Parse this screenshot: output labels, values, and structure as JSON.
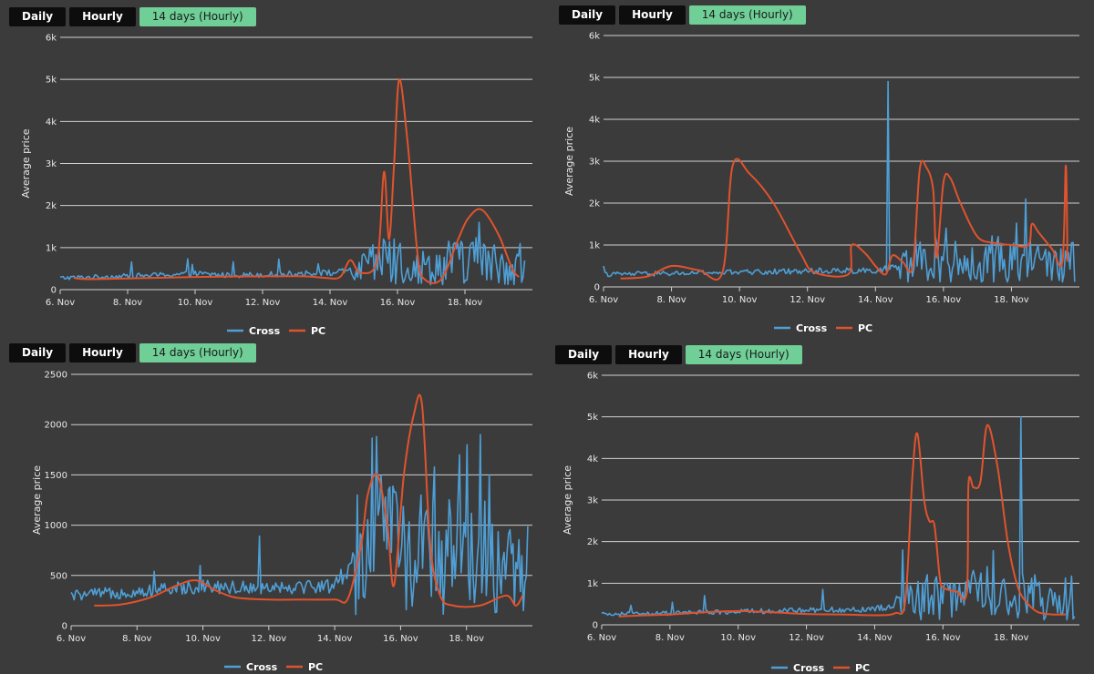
{
  "buttons": {
    "daily": "Daily",
    "hourly": "Hourly",
    "range": "14 days (Hourly)"
  },
  "colors": {
    "cross": "#4e9fd6",
    "pc": "#e0532d",
    "grid": "#d0d0d0",
    "active_button": "#6fcf97",
    "background": "#3b3b3b"
  },
  "chart_data": [
    {
      "type": "line",
      "ylabel": "Average price",
      "x_ticks": [
        "6. Nov",
        "8. Nov",
        "10. Nov",
        "12. Nov",
        "14. Nov",
        "16. Nov",
        "18. Nov"
      ],
      "y_ticks": [
        "0",
        "1k",
        "2k",
        "3k",
        "4k",
        "5k",
        "6k"
      ],
      "ylim": [
        0,
        6000
      ],
      "xlim": [
        6,
        20
      ],
      "legend": [
        "Cross",
        "PC"
      ],
      "series": [
        {
          "name": "Cross",
          "mode": "noisy",
          "points": [
            [
              6,
              280
            ],
            [
              7,
              300
            ],
            [
              8,
              320
            ],
            [
              9,
              350
            ],
            [
              10,
              380
            ],
            [
              11,
              340
            ],
            [
              12,
              360
            ],
            [
              13,
              380
            ],
            [
              14,
              400
            ],
            [
              14.7,
              450
            ],
            [
              15.2,
              550
            ],
            [
              15.6,
              700
            ],
            [
              16,
              650
            ],
            [
              16.5,
              500
            ],
            [
              17,
              550
            ],
            [
              17.5,
              600
            ],
            [
              18,
              700
            ],
            [
              18.5,
              650
            ],
            [
              19,
              600
            ],
            [
              19.5,
              550
            ],
            [
              19.8,
              400
            ]
          ],
          "spikes": [
            [
              9.9,
              600
            ],
            [
              15.2,
              1000
            ],
            [
              15.6,
              1200
            ],
            [
              15.9,
              1200
            ],
            [
              16.1,
              1100
            ],
            [
              17.5,
              1150
            ],
            [
              18.4,
              1600
            ],
            [
              19.6,
              800
            ]
          ]
        },
        {
          "name": "PC",
          "points": [
            [
              6.4,
              280
            ],
            [
              7,
              250
            ],
            [
              10,
              300
            ],
            [
              13,
              320
            ],
            [
              13.85,
              280
            ],
            [
              14.3,
              300
            ],
            [
              14.6,
              700
            ],
            [
              14.9,
              400
            ],
            [
              15.4,
              700
            ],
            [
              15.6,
              2800
            ],
            [
              15.75,
              1200
            ],
            [
              15.9,
              3000
            ],
            [
              16.05,
              5000
            ],
            [
              16.3,
              3500
            ],
            [
              16.6,
              800
            ],
            [
              16.8,
              250
            ],
            [
              17.3,
              250
            ],
            [
              17.8,
              1200
            ],
            [
              18.1,
              1700
            ],
            [
              18.5,
              1900
            ],
            [
              19,
              1300
            ],
            [
              19.4,
              500
            ],
            [
              19.6,
              300
            ]
          ]
        }
      ]
    },
    {
      "type": "line",
      "ylabel": "Average price",
      "x_ticks": [
        "6. Nov",
        "8. Nov",
        "10. Nov",
        "12. Nov",
        "14. Nov",
        "16. Nov",
        "18. Nov"
      ],
      "y_ticks": [
        "0",
        "1k",
        "2k",
        "3k",
        "4k",
        "5k",
        "6k"
      ],
      "ylim": [
        0,
        6000
      ],
      "xlim": [
        6,
        20
      ],
      "legend": [
        "Cross",
        "PC"
      ],
      "series": [
        {
          "name": "Cross",
          "mode": "noisy",
          "points": [
            [
              6,
              300
            ],
            [
              8,
              320
            ],
            [
              10,
              350
            ],
            [
              12,
              380
            ],
            [
              14,
              400
            ],
            [
              14.5,
              450
            ],
            [
              15,
              500
            ],
            [
              15.5,
              600
            ],
            [
              16,
              700
            ],
            [
              16.5,
              550
            ],
            [
              17,
              500
            ],
            [
              17.5,
              600
            ],
            [
              18,
              700
            ],
            [
              18.5,
              600
            ],
            [
              19,
              550
            ],
            [
              19.5,
              500
            ],
            [
              19.9,
              600
            ]
          ],
          "spikes": [
            [
              14.35,
              4900
            ],
            [
              15.2,
              1200
            ],
            [
              15.8,
              1000
            ],
            [
              16.1,
              1400
            ],
            [
              17.6,
              1200
            ],
            [
              18.4,
              2100
            ],
            [
              18.8,
              1000
            ],
            [
              19.3,
              800
            ]
          ]
        },
        {
          "name": "PC",
          "points": [
            [
              6.5,
              200
            ],
            [
              7.3,
              250
            ],
            [
              8,
              500
            ],
            [
              8.8,
              400
            ],
            [
              9.5,
              350
            ],
            [
              9.8,
              2900
            ],
            [
              10.3,
              2700
            ],
            [
              11,
              2000
            ],
            [
              11.8,
              800
            ],
            [
              12.2,
              350
            ],
            [
              13.2,
              300
            ],
            [
              13.3,
              1000
            ],
            [
              13.7,
              800
            ],
            [
              14,
              500
            ],
            [
              14.3,
              300
            ],
            [
              14.5,
              750
            ],
            [
              14.8,
              600
            ],
            [
              15.1,
              500
            ],
            [
              15.3,
              2800
            ],
            [
              15.5,
              2850
            ],
            [
              15.7,
              2300
            ],
            [
              15.8,
              700
            ],
            [
              16,
              2500
            ],
            [
              16.2,
              2600
            ],
            [
              16.5,
              2000
            ],
            [
              17,
              1200
            ],
            [
              17.5,
              1050
            ],
            [
              18,
              1000
            ],
            [
              18.5,
              1000
            ],
            [
              18.6,
              1500
            ],
            [
              18.8,
              1300
            ],
            [
              19.2,
              900
            ],
            [
              19.5,
              600
            ],
            [
              19.6,
              2900
            ],
            [
              19.65,
              600
            ]
          ]
        }
      ]
    },
    {
      "type": "line",
      "ylabel": "Average price",
      "x_ticks": [
        "6. Nov",
        "8. Nov",
        "10. Nov",
        "12. Nov",
        "14. Nov",
        "16. Nov",
        "18. Nov"
      ],
      "y_ticks": [
        "0",
        "500",
        "1000",
        "1500",
        "2000",
        "2500"
      ],
      "ylim": [
        0,
        2500
      ],
      "xlim": [
        6,
        20
      ],
      "legend": [
        "Cross",
        "PC"
      ],
      "series": [
        {
          "name": "Cross",
          "mode": "noisy",
          "points": [
            [
              6,
              300
            ],
            [
              7,
              320
            ],
            [
              8,
              340
            ],
            [
              9,
              360
            ],
            [
              10,
              400
            ],
            [
              11,
              380
            ],
            [
              12,
              390
            ],
            [
              13,
              390
            ],
            [
              14,
              400
            ],
            [
              14.7,
              700
            ],
            [
              15.2,
              800
            ],
            [
              15.6,
              900
            ],
            [
              16,
              700
            ],
            [
              16.5,
              600
            ],
            [
              17,
              650
            ],
            [
              17.5,
              700
            ],
            [
              18,
              800
            ],
            [
              18.5,
              700
            ],
            [
              19,
              600
            ],
            [
              19.5,
              500
            ],
            [
              19.9,
              550
            ]
          ],
          "spikes": [
            [
              9.9,
              600
            ],
            [
              14.7,
              1300
            ],
            [
              15.3,
              1100
            ],
            [
              16.6,
              1300
            ],
            [
              17,
              1200
            ],
            [
              17.8,
              1700
            ],
            [
              18,
              1800
            ],
            [
              18.4,
              1900
            ],
            [
              18.7,
              1500
            ]
          ]
        },
        {
          "name": "PC",
          "points": [
            [
              6.7,
              200
            ],
            [
              7.5,
              210
            ],
            [
              8.4,
              280
            ],
            [
              9.2,
              400
            ],
            [
              9.8,
              450
            ],
            [
              10.4,
              350
            ],
            [
              11,
              280
            ],
            [
              12,
              260
            ],
            [
              13,
              260
            ],
            [
              14,
              260
            ],
            [
              14.4,
              270
            ],
            [
              14.8,
              800
            ],
            [
              15,
              1300
            ],
            [
              15.3,
              1500
            ],
            [
              15.6,
              1000
            ],
            [
              15.8,
              400
            ],
            [
              16.1,
              1500
            ],
            [
              16.4,
              2100
            ],
            [
              16.65,
              2200
            ],
            [
              16.9,
              800
            ],
            [
              17.2,
              300
            ],
            [
              17.6,
              200
            ],
            [
              18.4,
              200
            ],
            [
              19.2,
              300
            ],
            [
              19.5,
              200
            ],
            [
              19.7,
              300
            ]
          ]
        }
      ]
    },
    {
      "type": "line",
      "ylabel": "Average price",
      "x_ticks": [
        "6. Nov",
        "8. Nov",
        "10. Nov",
        "12. Nov",
        "14. Nov",
        "16. Nov",
        "18. Nov"
      ],
      "y_ticks": [
        "0",
        "1k",
        "2k",
        "3k",
        "4k",
        "5k",
        "6k"
      ],
      "ylim": [
        0,
        6000
      ],
      "xlim": [
        6,
        20
      ],
      "legend": [
        "Cross",
        "PC"
      ],
      "series": [
        {
          "name": "Cross",
          "mode": "noisy",
          "points": [
            [
              6,
              250
            ],
            [
              8,
              280
            ],
            [
              10,
              320
            ],
            [
              12,
              350
            ],
            [
              14,
              380
            ],
            [
              14.5,
              450
            ],
            [
              15,
              600
            ],
            [
              15.5,
              700
            ],
            [
              16,
              600
            ],
            [
              16.5,
              650
            ],
            [
              17,
              700
            ],
            [
              17.5,
              750
            ],
            [
              18,
              800
            ],
            [
              18.5,
              650
            ],
            [
              19,
              500
            ],
            [
              19.5,
              450
            ],
            [
              19.9,
              500
            ]
          ],
          "spikes": [
            [
              12.5,
              850
            ],
            [
              14.8,
              1800
            ],
            [
              15.4,
              1000
            ],
            [
              16.1,
              1000
            ],
            [
              17.3,
              1400
            ],
            [
              17.8,
              1100
            ],
            [
              18.3,
              5000
            ],
            [
              19.4,
              700
            ]
          ]
        },
        {
          "name": "PC",
          "points": [
            [
              6.5,
              200
            ],
            [
              7,
              220
            ],
            [
              8,
              250
            ],
            [
              9,
              300
            ],
            [
              10,
              330
            ],
            [
              11,
              300
            ],
            [
              12,
              260
            ],
            [
              13,
              250
            ],
            [
              14,
              230
            ],
            [
              14.6,
              280
            ],
            [
              14.9,
              600
            ],
            [
              15.1,
              3500
            ],
            [
              15.25,
              4600
            ],
            [
              15.45,
              3000
            ],
            [
              15.6,
              2500
            ],
            [
              15.75,
              2400
            ],
            [
              15.9,
              1200
            ],
            [
              16,
              900
            ],
            [
              16.4,
              800
            ],
            [
              16.7,
              800
            ],
            [
              16.75,
              3400
            ],
            [
              16.9,
              3300
            ],
            [
              17.1,
              3450
            ],
            [
              17.3,
              4800
            ],
            [
              17.6,
              3800
            ],
            [
              17.9,
              2000
            ],
            [
              18.2,
              900
            ],
            [
              18.5,
              500
            ],
            [
              18.8,
              300
            ],
            [
              19.2,
              250
            ],
            [
              19.6,
              250
            ]
          ]
        }
      ]
    }
  ]
}
